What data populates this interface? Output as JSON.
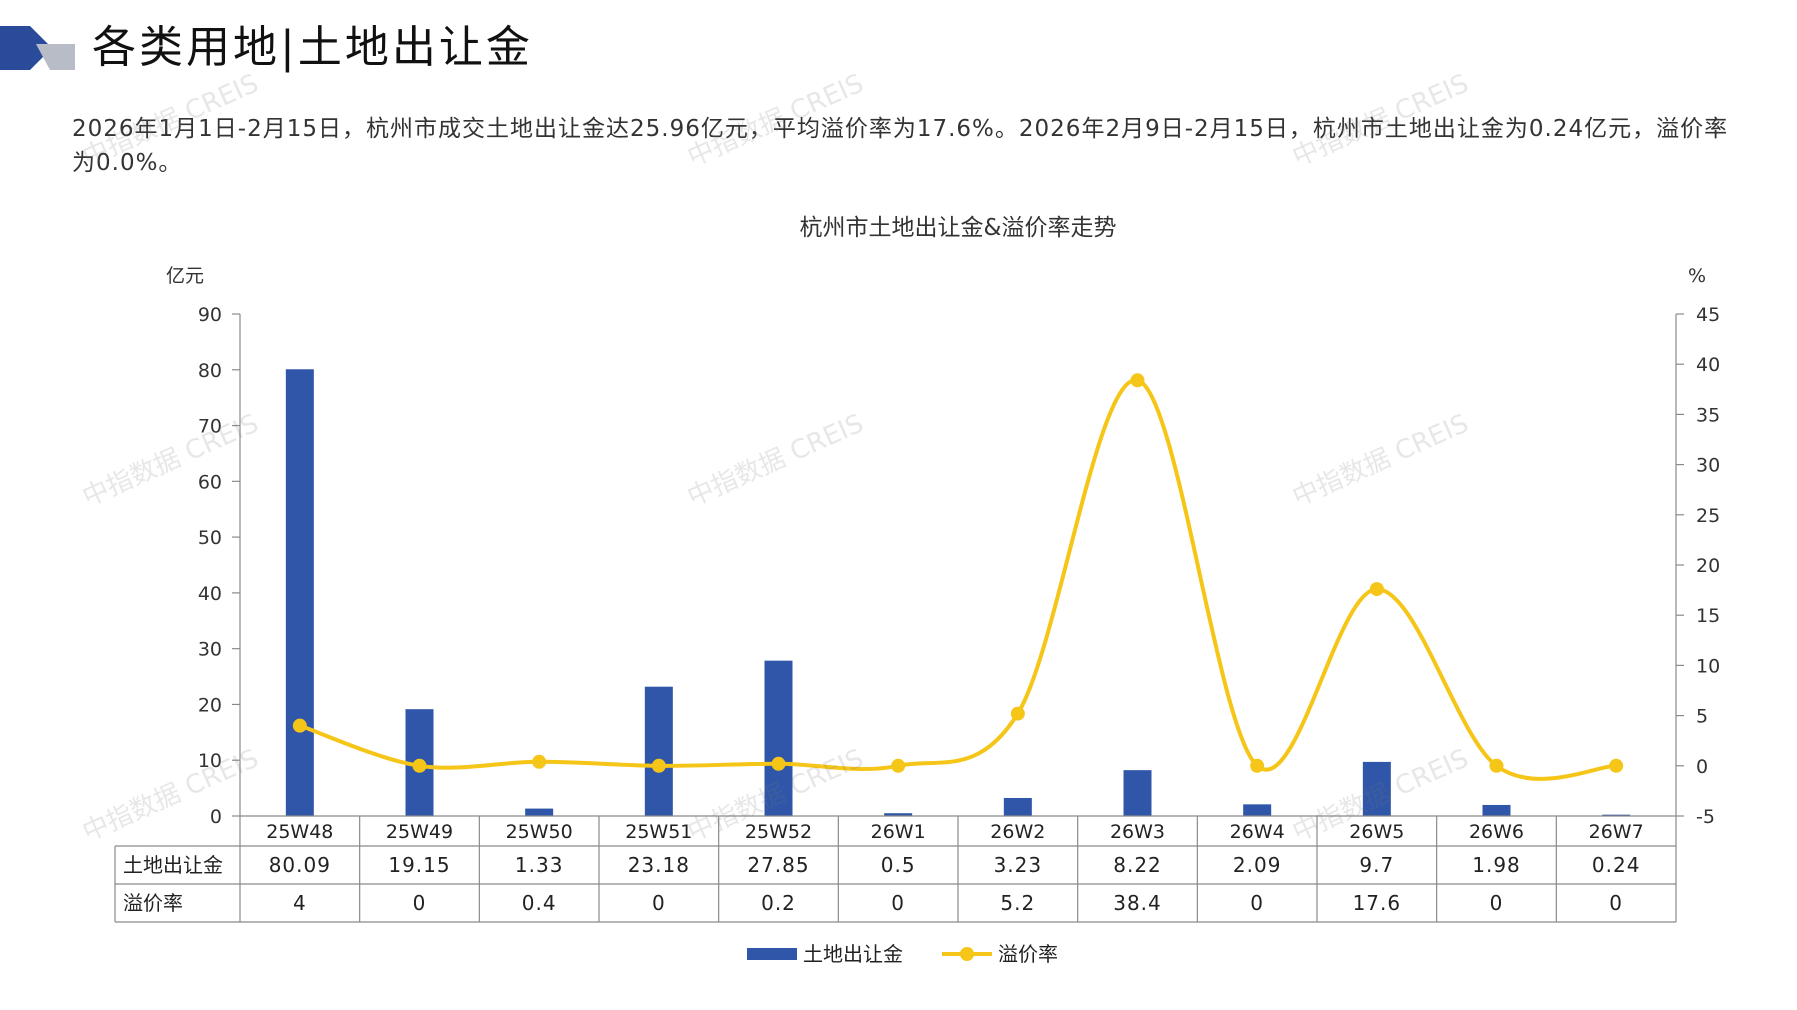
{
  "header": {
    "title": "各类用地|土地出让金"
  },
  "summary": {
    "text": "2026年1月1日-2月15日，杭州市成交土地出让金达25.96亿元，平均溢价率为17.6%。2026年2月9日-2月15日，杭州市土地出让金为0.24亿元，溢价率为0.0%。"
  },
  "watermark": {
    "text": "中指数据 CREIS"
  },
  "colors": {
    "bar": "#2f56a8",
    "line": "#f5c518",
    "logo_dark": "#2a4a9a",
    "logo_gray": "#b8bcc6"
  },
  "chart_data": {
    "type": "bar+line",
    "title": "杭州市土地出让金&溢价率走势",
    "categories": [
      "25W48",
      "25W49",
      "25W50",
      "25W51",
      "25W52",
      "26W1",
      "26W2",
      "26W3",
      "26W4",
      "26W5",
      "26W6",
      "26W7"
    ],
    "y_left_unit": "亿元",
    "y_right_unit": "%",
    "y_left_range": [
      0,
      90
    ],
    "y_left_ticks": [
      "0",
      "10",
      "20",
      "30",
      "40",
      "50",
      "60",
      "70",
      "80",
      "90"
    ],
    "y_right_range": [
      -5,
      45
    ],
    "y_right_ticks": [
      "-5",
      "0",
      "5",
      "10",
      "15",
      "20",
      "25",
      "30",
      "35",
      "40",
      "45"
    ],
    "series": [
      {
        "name": "土地出让金",
        "type": "bar",
        "values": [
          80.09,
          19.15,
          1.33,
          23.18,
          27.85,
          0.5,
          3.23,
          8.22,
          2.09,
          9.7,
          1.98,
          0.24
        ],
        "labels": [
          "80.09",
          "19.15",
          "1.33",
          "23.18",
          "27.85",
          "0.5",
          "3.23",
          "8.22",
          "2.09",
          "9.7",
          "1.98",
          "0.24"
        ]
      },
      {
        "name": "溢价率",
        "type": "line",
        "axis": "right",
        "values": [
          4,
          0,
          0.4,
          0,
          0.2,
          0,
          5.2,
          38.4,
          0,
          17.6,
          0,
          0
        ],
        "labels": [
          "4",
          "0",
          "0.4",
          "0",
          "0.2",
          "0",
          "5.2",
          "38.4",
          "0",
          "17.6",
          "0",
          "0"
        ]
      }
    ],
    "legend_position": "bottom",
    "grid": false
  }
}
